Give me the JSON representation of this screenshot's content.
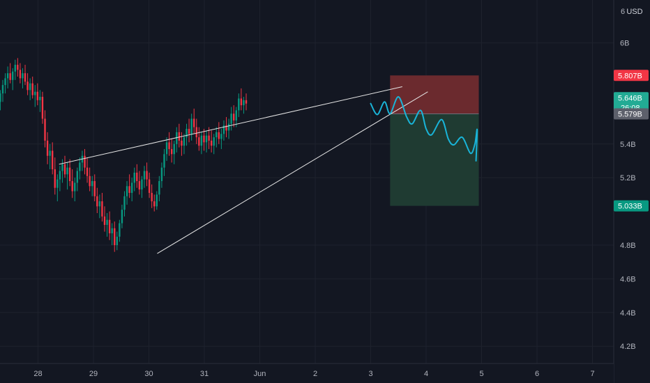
{
  "chart_data": {
    "type": "candlestick",
    "symbol_currency": "USD",
    "y_axis": {
      "unit_label": "6",
      "currency_label": "USD",
      "range": [
        4.1,
        6.2
      ],
      "ticks": [
        {
          "v": 6.0,
          "label": "6B"
        },
        {
          "v": 5.4,
          "label": "5.4B"
        },
        {
          "v": 5.2,
          "label": "5.2B"
        },
        {
          "v": 4.8,
          "label": "4.8B"
        },
        {
          "v": 4.6,
          "label": "4.6B"
        },
        {
          "v": 4.4,
          "label": "4.4B"
        },
        {
          "v": 4.2,
          "label": "4.2B"
        }
      ]
    },
    "x_axis": {
      "ticks": [
        {
          "t": 28,
          "label": "28"
        },
        {
          "t": 29,
          "label": "29"
        },
        {
          "t": 30,
          "label": "30"
        },
        {
          "t": 31,
          "label": "31"
        },
        {
          "t": 32,
          "label": "Jun"
        },
        {
          "t": 33,
          "label": "2"
        },
        {
          "t": 34,
          "label": "3"
        },
        {
          "t": 35,
          "label": "4"
        },
        {
          "t": 36,
          "label": "5"
        },
        {
          "t": 37,
          "label": "6"
        },
        {
          "t": 38,
          "label": "7"
        }
      ]
    },
    "price_labels": {
      "stop": {
        "v": 5.807,
        "label": "5.807B",
        "color": "#f23645"
      },
      "current": {
        "v": 5.646,
        "label": "5.646B",
        "countdown": "26:08",
        "color": "#22ab94"
      },
      "entry": {
        "v": 5.579,
        "label": "5.579B",
        "color": "#5d606b"
      },
      "target": {
        "v": 5.033,
        "label": "5.033B",
        "color": "#089981"
      }
    },
    "position": {
      "t_start": 34.35,
      "t_end": 35.95,
      "entry": 5.579,
      "stop": 5.807,
      "target": 5.033
    },
    "trendlines": [
      {
        "t1": 28.38,
        "v1": 5.28,
        "t2": 34.57,
        "v2": 5.74
      },
      {
        "t1": 30.15,
        "v1": 4.75,
        "t2": 35.03,
        "v2": 5.71
      }
    ],
    "projection": [
      [
        34.0,
        5.64
      ],
      [
        34.12,
        5.575
      ],
      [
        34.25,
        5.65
      ],
      [
        34.35,
        5.58
      ],
      [
        34.5,
        5.68
      ],
      [
        34.65,
        5.56
      ],
      [
        34.75,
        5.52
      ],
      [
        34.9,
        5.6
      ],
      [
        35.0,
        5.49
      ],
      [
        35.1,
        5.455
      ],
      [
        35.28,
        5.545
      ],
      [
        35.4,
        5.43
      ],
      [
        35.5,
        5.395
      ],
      [
        35.65,
        5.44
      ],
      [
        35.8,
        5.345
      ],
      [
        35.88,
        5.4
      ],
      [
        35.92,
        5.485
      ],
      [
        35.9,
        5.3
      ]
    ],
    "candles": {
      "start_t": 27.23,
      "step": 0.0448,
      "ohlc": [
        [
          5.58,
          5.67,
          5.53,
          5.62
        ],
        [
          5.62,
          5.68,
          5.57,
          5.65
        ],
        [
          5.65,
          5.72,
          5.6,
          5.7
        ],
        [
          5.7,
          5.78,
          5.65,
          5.75
        ],
        [
          5.75,
          5.82,
          5.7,
          5.79
        ],
        [
          5.79,
          5.86,
          5.73,
          5.82
        ],
        [
          5.82,
          5.88,
          5.76,
          5.78
        ],
        [
          5.78,
          5.85,
          5.72,
          5.83
        ],
        [
          5.83,
          5.9,
          5.78,
          5.87
        ],
        [
          5.87,
          5.91,
          5.8,
          5.84
        ],
        [
          5.84,
          5.88,
          5.76,
          5.79
        ],
        [
          5.79,
          5.85,
          5.73,
          5.82
        ],
        [
          5.82,
          5.87,
          5.75,
          5.77
        ],
        [
          5.77,
          5.82,
          5.69,
          5.72
        ],
        [
          5.72,
          5.79,
          5.66,
          5.76
        ],
        [
          5.76,
          5.8,
          5.67,
          5.69
        ],
        [
          5.69,
          5.75,
          5.62,
          5.71
        ],
        [
          5.71,
          5.76,
          5.63,
          5.66
        ],
        [
          5.66,
          5.72,
          5.59,
          5.68
        ],
        [
          5.68,
          5.71,
          5.52,
          5.55
        ],
        [
          5.55,
          5.6,
          5.38,
          5.42
        ],
        [
          5.42,
          5.47,
          5.28,
          5.33
        ],
        [
          5.33,
          5.4,
          5.25,
          5.36
        ],
        [
          5.36,
          5.41,
          5.22,
          5.25
        ],
        [
          5.25,
          5.32,
          5.1,
          5.14
        ],
        [
          5.14,
          5.22,
          5.06,
          5.19
        ],
        [
          5.19,
          5.27,
          5.12,
          5.24
        ],
        [
          5.24,
          5.31,
          5.17,
          5.28
        ],
        [
          5.28,
          5.33,
          5.2,
          5.22
        ],
        [
          5.22,
          5.29,
          5.13,
          5.26
        ],
        [
          5.26,
          5.31,
          5.15,
          5.18
        ],
        [
          5.18,
          5.25,
          5.08,
          5.12
        ],
        [
          5.12,
          5.2,
          5.06,
          5.17
        ],
        [
          5.17,
          5.26,
          5.12,
          5.24
        ],
        [
          5.24,
          5.32,
          5.19,
          5.29
        ],
        [
          5.29,
          5.36,
          5.24,
          5.33
        ],
        [
          5.33,
          5.37,
          5.22,
          5.26
        ],
        [
          5.26,
          5.32,
          5.17,
          5.21
        ],
        [
          5.21,
          5.26,
          5.12,
          5.15
        ],
        [
          5.15,
          5.21,
          5.09,
          5.18
        ],
        [
          5.18,
          5.22,
          5.06,
          5.09
        ],
        [
          5.09,
          5.14,
          4.99,
          5.03
        ],
        [
          5.03,
          5.1,
          4.96,
          5.06
        ],
        [
          5.06,
          5.11,
          4.94,
          4.97
        ],
        [
          4.97,
          5.03,
          4.88,
          4.92
        ],
        [
          4.92,
          4.99,
          4.85,
          4.95
        ],
        [
          4.95,
          5.0,
          4.83,
          4.87
        ],
        [
          4.87,
          4.93,
          4.8,
          4.9
        ],
        [
          4.9,
          4.94,
          4.76,
          4.8
        ],
        [
          4.8,
          4.88,
          4.77,
          4.85
        ],
        [
          4.85,
          4.95,
          4.82,
          4.93
        ],
        [
          4.93,
          5.04,
          4.9,
          5.01
        ],
        [
          5.01,
          5.12,
          4.97,
          5.09
        ],
        [
          5.09,
          5.18,
          5.04,
          5.15
        ],
        [
          5.15,
          5.22,
          5.08,
          5.11
        ],
        [
          5.11,
          5.2,
          5.06,
          5.17
        ],
        [
          5.17,
          5.26,
          5.12,
          5.23
        ],
        [
          5.23,
          5.28,
          5.14,
          5.18
        ],
        [
          5.18,
          5.24,
          5.1,
          5.13
        ],
        [
          5.13,
          5.21,
          5.08,
          5.19
        ],
        [
          5.19,
          5.27,
          5.14,
          5.24
        ],
        [
          5.24,
          5.29,
          5.15,
          5.19
        ],
        [
          5.19,
          5.23,
          5.08,
          5.11
        ],
        [
          5.11,
          5.16,
          5.02,
          5.06
        ],
        [
          5.06,
          5.1,
          5.0,
          5.03
        ],
        [
          5.03,
          5.12,
          5.01,
          5.1
        ],
        [
          5.1,
          5.21,
          5.06,
          5.18
        ],
        [
          5.18,
          5.29,
          5.14,
          5.26
        ],
        [
          5.26,
          5.37,
          5.21,
          5.34
        ],
        [
          5.34,
          5.44,
          5.3,
          5.41
        ],
        [
          5.41,
          5.47,
          5.33,
          5.37
        ],
        [
          5.37,
          5.43,
          5.29,
          5.34
        ],
        [
          5.34,
          5.42,
          5.28,
          5.4
        ],
        [
          5.4,
          5.5,
          5.35,
          5.47
        ],
        [
          5.47,
          5.52,
          5.38,
          5.42
        ],
        [
          5.42,
          5.47,
          5.33,
          5.39
        ],
        [
          5.39,
          5.46,
          5.34,
          5.44
        ],
        [
          5.44,
          5.52,
          5.39,
          5.49
        ],
        [
          5.49,
          5.55,
          5.41,
          5.46
        ],
        [
          5.46,
          5.58,
          5.42,
          5.55
        ],
        [
          5.55,
          5.61,
          5.46,
          5.5
        ],
        [
          5.5,
          5.55,
          5.4,
          5.44
        ],
        [
          5.44,
          5.5,
          5.36,
          5.39
        ],
        [
          5.39,
          5.47,
          5.34,
          5.45
        ],
        [
          5.45,
          5.49,
          5.36,
          5.41
        ],
        [
          5.41,
          5.48,
          5.35,
          5.45
        ],
        [
          5.45,
          5.5,
          5.37,
          5.42
        ],
        [
          5.42,
          5.48,
          5.35,
          5.39
        ],
        [
          5.39,
          5.46,
          5.34,
          5.44
        ],
        [
          5.44,
          5.5,
          5.38,
          5.47
        ],
        [
          5.47,
          5.53,
          5.4,
          5.43
        ],
        [
          5.43,
          5.49,
          5.37,
          5.46
        ],
        [
          5.46,
          5.54,
          5.42,
          5.51
        ],
        [
          5.51,
          5.56,
          5.44,
          5.48
        ],
        [
          5.48,
          5.55,
          5.43,
          5.52
        ],
        [
          5.52,
          5.62,
          5.48,
          5.58
        ],
        [
          5.58,
          5.63,
          5.5,
          5.54
        ],
        [
          5.54,
          5.62,
          5.5,
          5.6
        ],
        [
          5.6,
          5.7,
          5.56,
          5.67
        ],
        [
          5.67,
          5.73,
          5.6,
          5.63
        ],
        [
          5.63,
          5.68,
          5.58,
          5.66
        ],
        [
          5.66,
          5.7,
          5.6,
          5.64
        ]
      ]
    },
    "colors": {
      "up": "#089981",
      "down": "#f23645",
      "trendline": "#e6e6e6",
      "projection": "#19b4d8",
      "stop_zone": "#6b2a2e",
      "target_zone": "#1f3b32",
      "grid": "#1e222d",
      "text": "#b2b5be"
    }
  }
}
